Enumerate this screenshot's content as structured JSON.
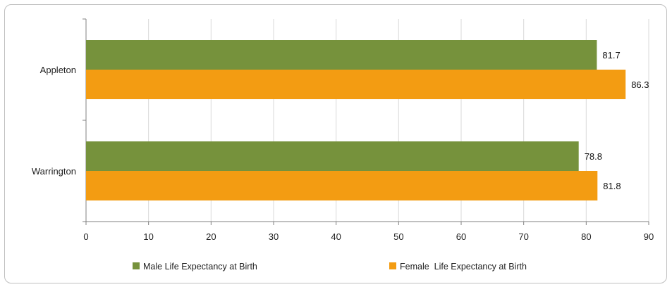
{
  "chart_data": {
    "type": "bar",
    "orientation": "horizontal",
    "categories": [
      "Appleton",
      "Warrington"
    ],
    "series": [
      {
        "name": "Male Life Expectancy at Birth",
        "values": [
          81.7,
          78.8
        ],
        "color": "#76923c"
      },
      {
        "name": "Female  Life Expectancy at Birth",
        "values": [
          86.3,
          81.8
        ],
        "color": "#f39c12"
      }
    ],
    "xlim": [
      0,
      90
    ],
    "xticks": [
      0,
      10,
      20,
      30,
      40,
      50,
      60,
      70,
      80,
      90
    ],
    "grid": true,
    "legend_position": "bottom",
    "data_labels": true
  }
}
